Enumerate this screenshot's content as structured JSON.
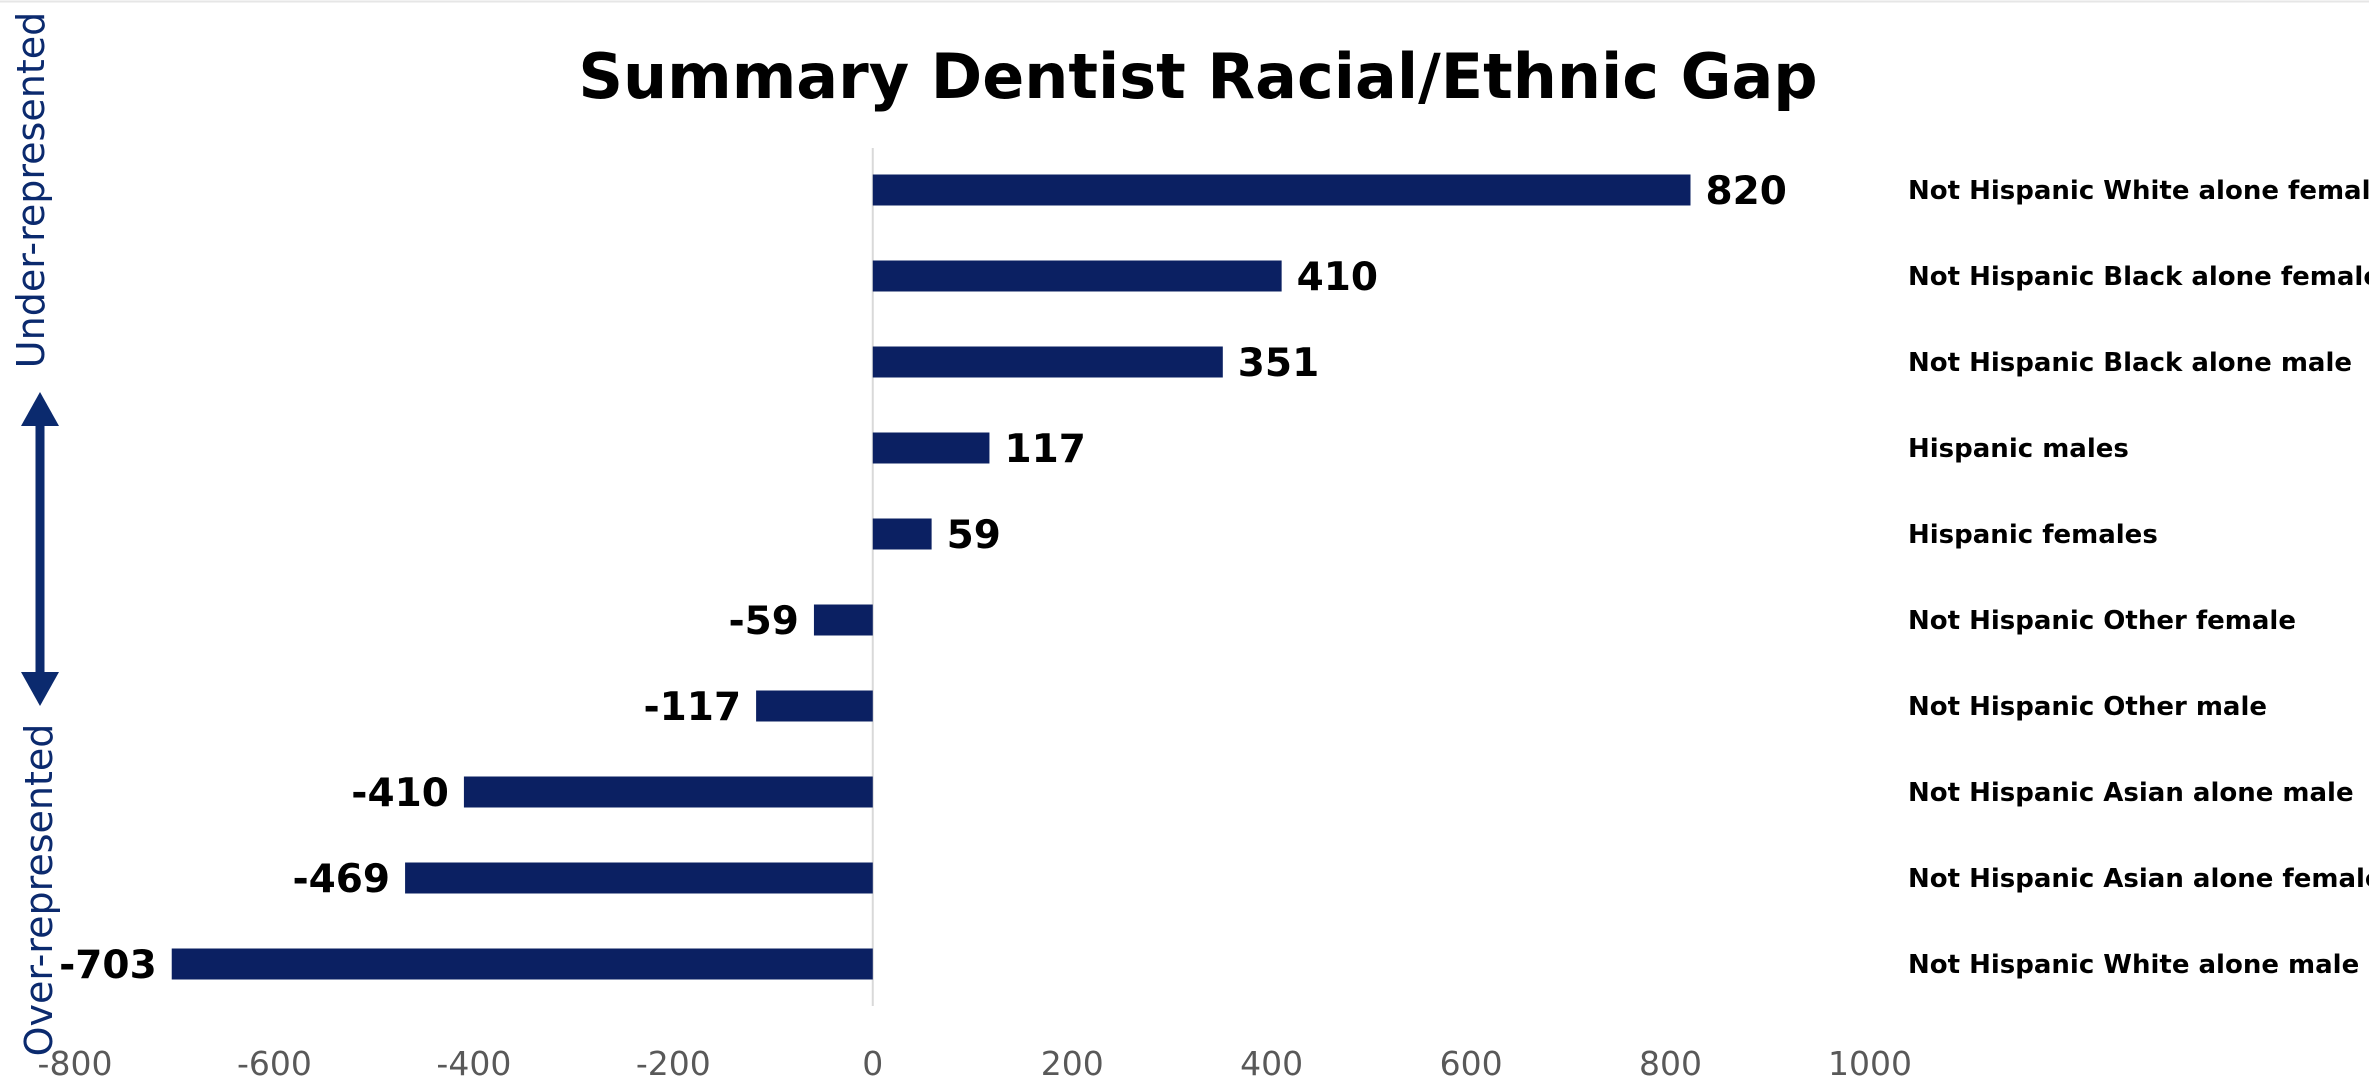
{
  "colors": {
    "bar": "#0b2062",
    "arrow": "#0b2a6e",
    "axis_line": "#d9d9d9",
    "tick_text": "#595959"
  },
  "annotations": {
    "top": "Under-represented",
    "bottom": "Over-represented"
  },
  "chart_data": {
    "type": "bar",
    "orientation": "horizontal",
    "title": "Summary Dentist Racial/Ethnic Gap",
    "categories": [
      "Not Hispanic White alone female",
      "Not Hispanic Black alone female",
      "Not Hispanic Black alone male",
      "Hispanic males",
      "Hispanic females",
      "Not Hispanic Other female",
      "Not Hispanic Other male",
      "Not Hispanic Asian alone male",
      "Not Hispanic Asian alone female",
      "Not Hispanic White alone male"
    ],
    "values": [
      820,
      410,
      351,
      117,
      59,
      -59,
      -117,
      -410,
      -469,
      -703
    ],
    "xlim": [
      -800,
      1000
    ],
    "xticks": [
      -800,
      -600,
      -400,
      -200,
      0,
      200,
      400,
      600,
      800,
      1000
    ],
    "grid": false
  }
}
